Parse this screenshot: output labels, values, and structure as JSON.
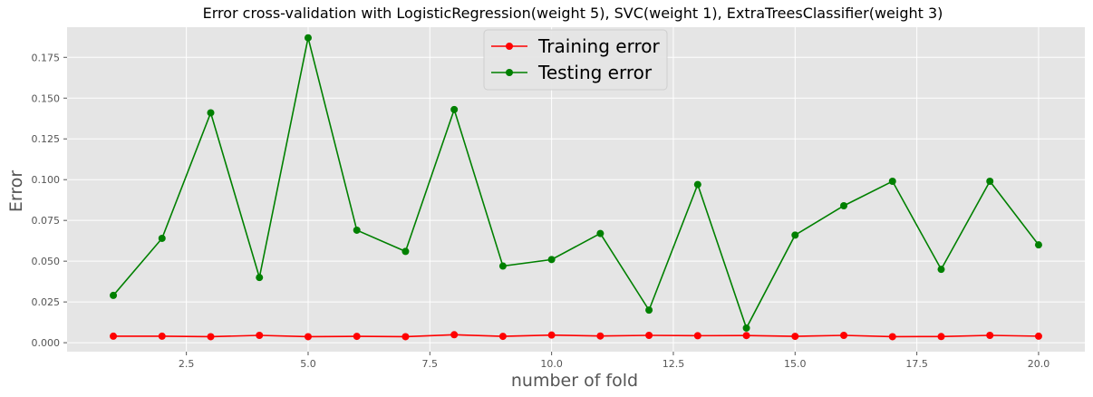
{
  "chart_data": {
    "type": "line",
    "title": "Error cross-validation with LogisticRegression(weight 5), SVC(weight 1), ExtraTreesClassifier(weight 3)",
    "xlabel": "number of fold",
    "ylabel": "Error",
    "xlim": [
      0.05,
      20.95
    ],
    "ylim": [
      -0.0055,
      0.1935
    ],
    "x_ticks": [
      2.5,
      5.0,
      7.5,
      10.0,
      12.5,
      15.0,
      17.5,
      20.0
    ],
    "x_tick_labels": [
      "2.5",
      "5.0",
      "7.5",
      "10.0",
      "12.5",
      "15.0",
      "17.5",
      "20.0"
    ],
    "y_ticks": [
      0.0,
      0.025,
      0.05,
      0.075,
      0.1,
      0.125,
      0.15,
      0.175
    ],
    "y_tick_labels": [
      "0.000",
      "0.025",
      "0.050",
      "0.075",
      "0.100",
      "0.125",
      "0.150",
      "0.175"
    ],
    "grid": true,
    "legend_position": "top-center",
    "x": [
      1,
      2,
      3,
      4,
      5,
      6,
      7,
      8,
      9,
      10,
      11,
      12,
      13,
      14,
      15,
      16,
      17,
      18,
      19,
      20
    ],
    "series": [
      {
        "name": "Training error",
        "color": "#ff0000",
        "values": [
          0.004,
          0.004,
          0.0037,
          0.0045,
          0.0037,
          0.0039,
          0.0037,
          0.0049,
          0.0039,
          0.0047,
          0.0041,
          0.0045,
          0.0043,
          0.0044,
          0.0039,
          0.0045,
          0.0037,
          0.0038,
          0.0045,
          0.004
        ]
      },
      {
        "name": "Testing error",
        "color": "#008000",
        "values": [
          0.029,
          0.064,
          0.141,
          0.04,
          0.187,
          0.069,
          0.056,
          0.143,
          0.047,
          0.051,
          0.067,
          0.02,
          0.097,
          0.009,
          0.066,
          0.084,
          0.099,
          0.045,
          0.099,
          0.06
        ]
      }
    ]
  },
  "style": {
    "plot_background": "#e5e5e5",
    "grid_color": "#ffffff"
  }
}
